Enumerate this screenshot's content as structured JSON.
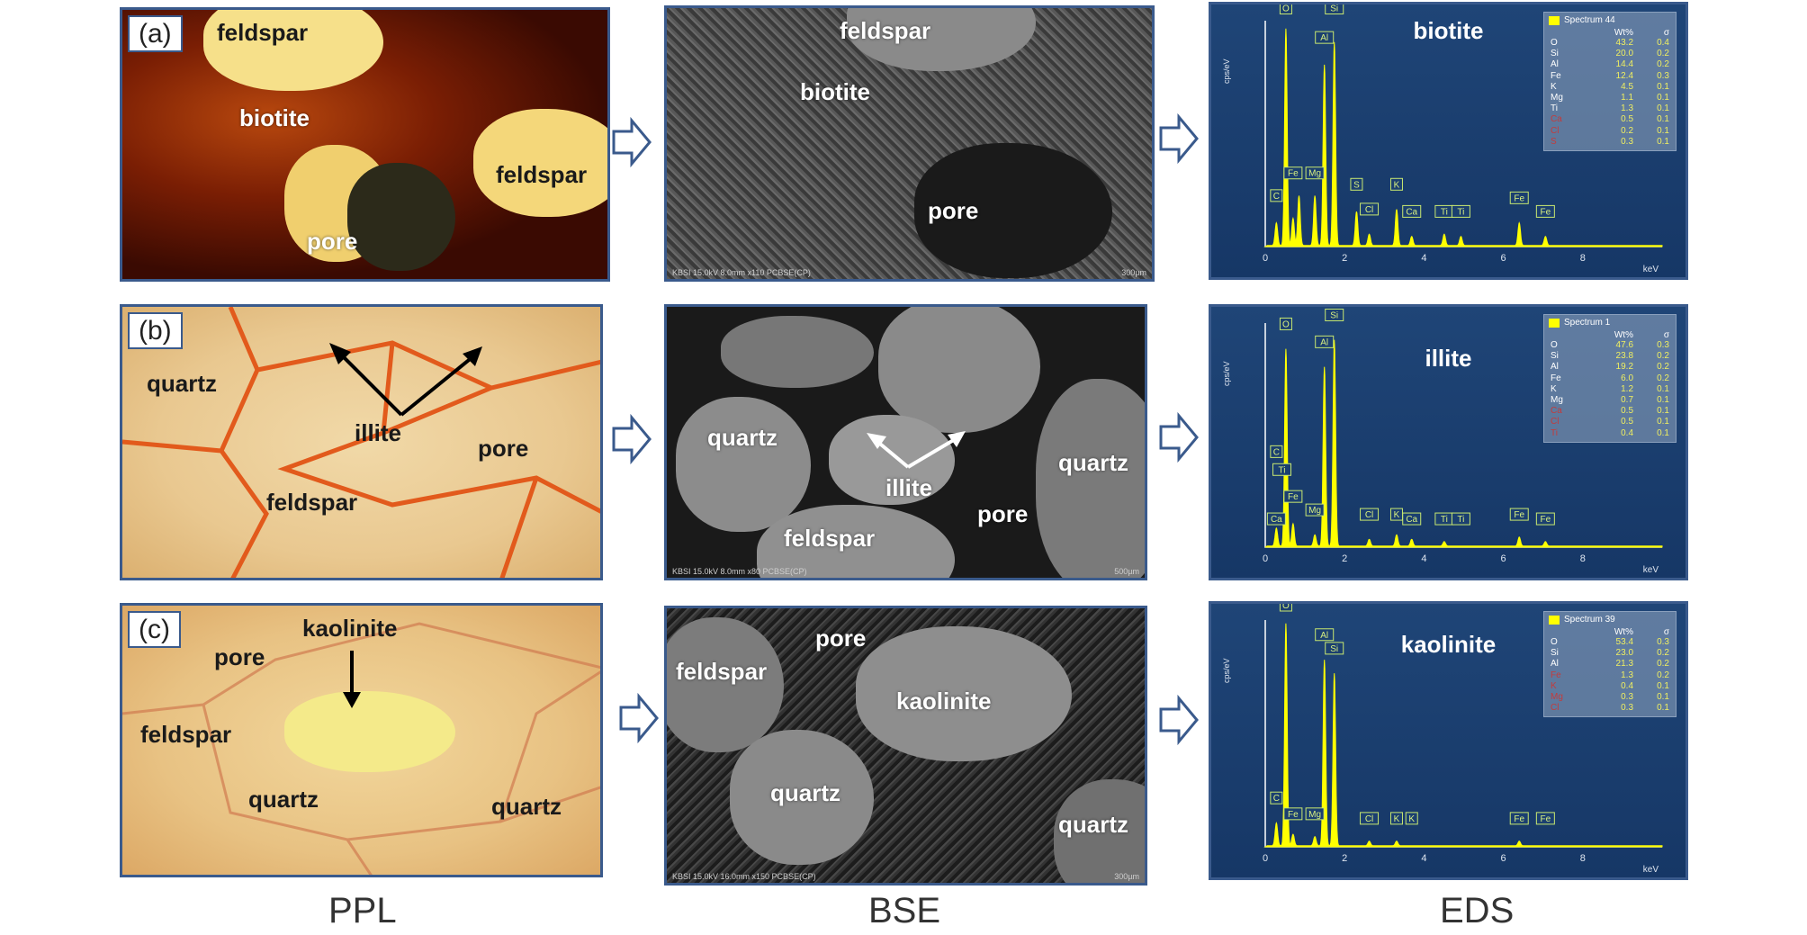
{
  "columns": {
    "ppl": "PPL",
    "bse": "BSE",
    "eds": "EDS"
  },
  "rows": [
    {
      "tag": "(a)",
      "ppl_labels": [
        "feldspar",
        "biotite",
        "feldspar",
        "pore"
      ],
      "bse_labels": [
        "feldspar",
        "biotite",
        "pore"
      ],
      "bse_footer": "KBSI 15.0kV 8.0mm x110 PCBSE(CP)",
      "bse_scale": "300µm",
      "eds": {
        "title": "biotite",
        "spectrum": "Spectrum 44",
        "hdr_wt": "Wt%",
        "hdr_sig": "σ",
        "elements": [
          {
            "el": "O",
            "wt": "43.2",
            "sig": "0.4"
          },
          {
            "el": "Si",
            "wt": "20.0",
            "sig": "0.2"
          },
          {
            "el": "Al",
            "wt": "14.4",
            "sig": "0.2"
          },
          {
            "el": "Fe",
            "wt": "12.4",
            "sig": "0.3"
          },
          {
            "el": "K",
            "wt": "4.5",
            "sig": "0.1"
          },
          {
            "el": "Mg",
            "wt": "1.1",
            "sig": "0.1"
          },
          {
            "el": "Ti",
            "wt": "1.3",
            "sig": "0.1"
          },
          {
            "el": "Ca",
            "wt": "0.5",
            "sig": "0.1"
          },
          {
            "el": "Cl",
            "wt": "0.2",
            "sig": "0.1"
          },
          {
            "el": "S",
            "wt": "0.3",
            "sig": "0.1"
          }
        ],
        "ylabel": "cps/eV",
        "xlabel": "keV",
        "xticks": [
          "0",
          "2",
          "4",
          "6",
          "8"
        ],
        "peaks": [
          "O",
          "Si",
          "Al",
          "Fe",
          "Mg",
          "C",
          "S",
          "Cl",
          "K",
          "Ca",
          "Ti",
          "Ti",
          "Fe",
          "Fe"
        ]
      }
    },
    {
      "tag": "(b)",
      "ppl_labels": [
        "quartz",
        "illite",
        "pore",
        "feldspar"
      ],
      "bse_labels": [
        "quartz",
        "illite",
        "quartz",
        "pore",
        "feldspar"
      ],
      "bse_footer": "KBSI 15.0kV 8.0mm x80 PCBSE(CP)",
      "bse_scale": "500µm",
      "eds": {
        "title": "illite",
        "spectrum": "Spectrum 1",
        "hdr_wt": "Wt%",
        "hdr_sig": "σ",
        "elements": [
          {
            "el": "O",
            "wt": "47.6",
            "sig": "0.3"
          },
          {
            "el": "Si",
            "wt": "23.8",
            "sig": "0.2"
          },
          {
            "el": "Al",
            "wt": "19.2",
            "sig": "0.2"
          },
          {
            "el": "Fe",
            "wt": "6.0",
            "sig": "0.2"
          },
          {
            "el": "K",
            "wt": "1.2",
            "sig": "0.1"
          },
          {
            "el": "Mg",
            "wt": "0.7",
            "sig": "0.1"
          },
          {
            "el": "Ca",
            "wt": "0.5",
            "sig": "0.1"
          },
          {
            "el": "Cl",
            "wt": "0.5",
            "sig": "0.1"
          },
          {
            "el": "Ti",
            "wt": "0.4",
            "sig": "0.1"
          }
        ],
        "ylabel": "cps/eV",
        "xlabel": "keV",
        "xticks": [
          "0",
          "2",
          "4",
          "6",
          "8"
        ],
        "peaks": [
          "O",
          "Al",
          "Si",
          "C",
          "Ti",
          "Fe",
          "Mg",
          "Ca",
          "Cl",
          "K",
          "Ca",
          "Ti",
          "Ti",
          "Fe",
          "Fe"
        ]
      }
    },
    {
      "tag": "(c)",
      "ppl_labels": [
        "pore",
        "kaolinite",
        "feldspar",
        "quartz",
        "quartz"
      ],
      "bse_labels": [
        "pore",
        "feldspar",
        "kaolinite",
        "quartz",
        "quartz"
      ],
      "bse_footer": "KBSI 15.0kV 16.0mm x150 PCBSE(CP)",
      "bse_scale": "300µm",
      "eds": {
        "title": "kaolinite",
        "spectrum": "Spectrum 39",
        "hdr_wt": "Wt%",
        "hdr_sig": "σ",
        "elements": [
          {
            "el": "O",
            "wt": "53.4",
            "sig": "0.3"
          },
          {
            "el": "Si",
            "wt": "23.0",
            "sig": "0.2"
          },
          {
            "el": "Al",
            "wt": "21.3",
            "sig": "0.2"
          },
          {
            "el": "Fe",
            "wt": "1.3",
            "sig": "0.2"
          },
          {
            "el": "K",
            "wt": "0.4",
            "sig": "0.1"
          },
          {
            "el": "Mg",
            "wt": "0.3",
            "sig": "0.1"
          },
          {
            "el": "Cl",
            "wt": "0.3",
            "sig": "0.1"
          }
        ],
        "ylabel": "cps/eV",
        "xlabel": "keV",
        "xticks": [
          "0",
          "2",
          "4",
          "6",
          "8"
        ],
        "peaks": [
          "O",
          "Al",
          "Si",
          "C",
          "Fe",
          "Mg",
          "Cl",
          "K",
          "K",
          "Fe",
          "Fe"
        ]
      }
    }
  ],
  "colors": {
    "frame": "#3a5a8c",
    "eds_bg": "#1b3f70",
    "spectrum": "#ffff00",
    "arrow": "#3a5a8c"
  }
}
